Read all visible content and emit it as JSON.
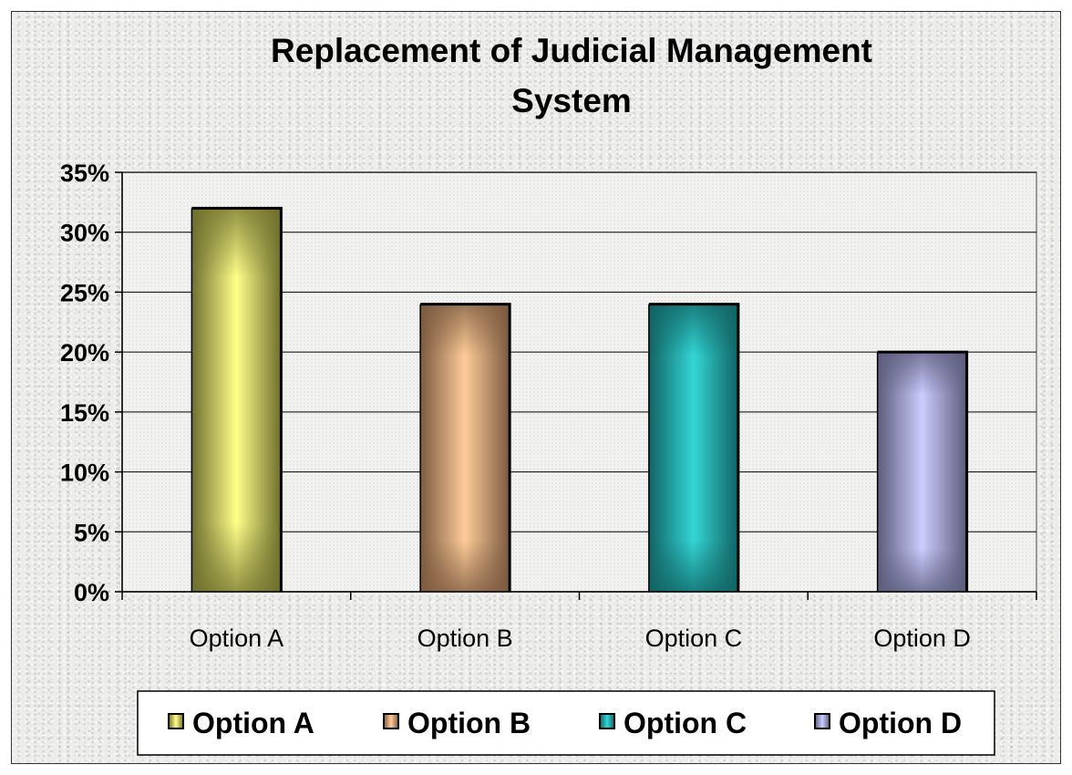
{
  "chart_data": {
    "type": "bar",
    "title": "Replacement of Judicial Management System",
    "title_lines": [
      "Replacement of Judicial Management",
      "System"
    ],
    "categories": [
      "Option A",
      "Option B",
      "Option C",
      "Option D"
    ],
    "values": [
      32,
      24,
      24,
      20
    ],
    "value_unit": "%",
    "ylim": [
      0,
      35
    ],
    "yticks": [
      0,
      5,
      10,
      15,
      20,
      25,
      30,
      35
    ],
    "ytick_labels": [
      "0%",
      "5%",
      "10%",
      "15%",
      "20%",
      "25%",
      "30%",
      "35%"
    ],
    "xlabel": "",
    "ylabel": "",
    "grid": true,
    "legend_position": "bottom",
    "legend": [
      "Option A",
      "Option B",
      "Option C",
      "Option D"
    ],
    "colors": [
      {
        "edge": "#6f6f2e",
        "center": "#ffff8a"
      },
      {
        "edge": "#7b5a3f",
        "center": "#ffcc99"
      },
      {
        "edge": "#126363",
        "center": "#33d6d6"
      },
      {
        "edge": "#5c5c7c",
        "center": "#ccccff"
      }
    ]
  }
}
